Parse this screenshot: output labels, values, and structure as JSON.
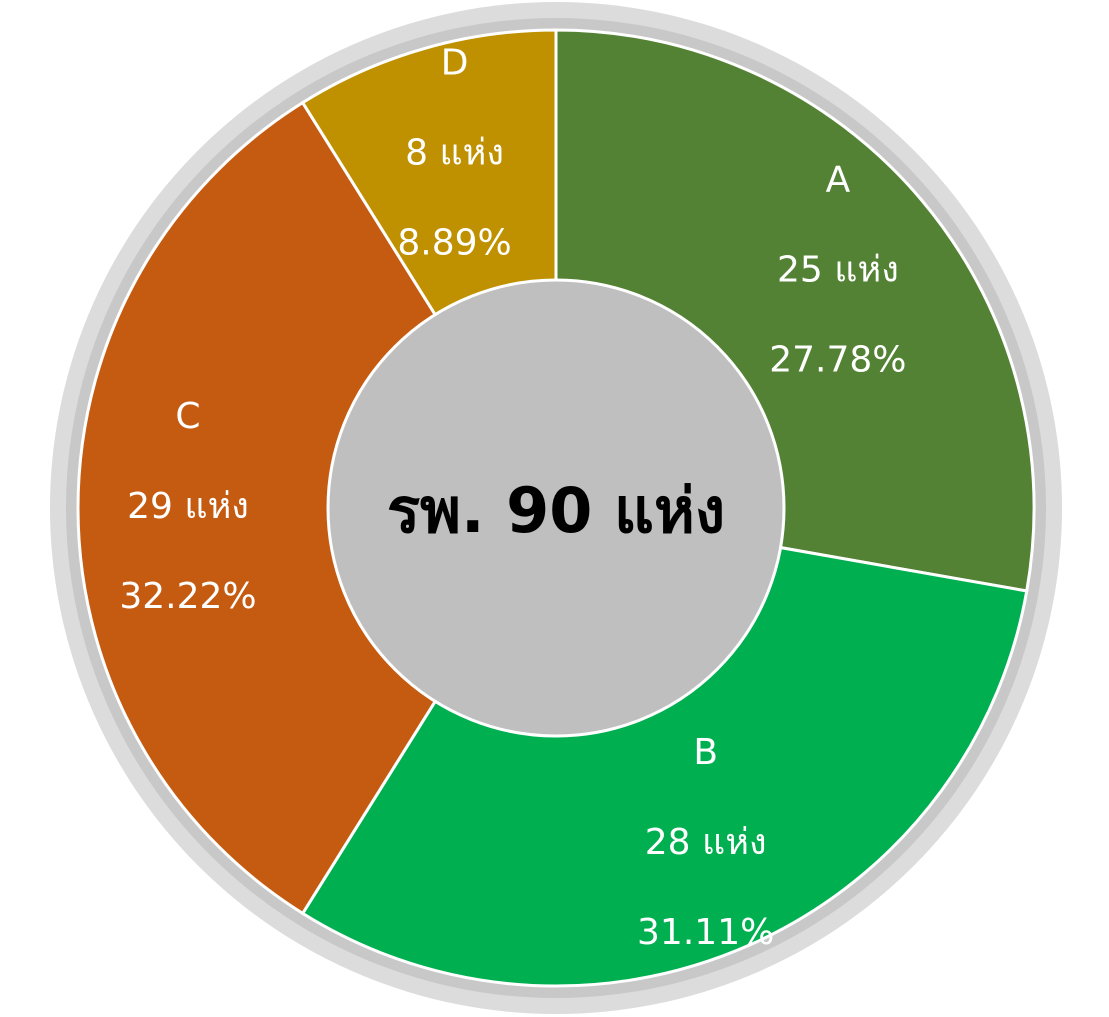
{
  "chart_data": {
    "type": "donut",
    "center_label": "รพ. 90 แห่ง",
    "categories": [
      "A",
      "B",
      "C",
      "D"
    ],
    "values": [
      25,
      28,
      29,
      8
    ],
    "value_labels": [
      "25 แห่ง",
      "28 แห่ง",
      "29 แห่ง",
      "8 แห่ง"
    ],
    "percentages": [
      27.78,
      31.11,
      32.22,
      8.89
    ],
    "percentage_labels": [
      "27.78%",
      "31.11%",
      "32.22%",
      "8.89%"
    ],
    "colors": [
      "#548235",
      "#00b050",
      "#c55a11",
      "#bf9000"
    ]
  }
}
